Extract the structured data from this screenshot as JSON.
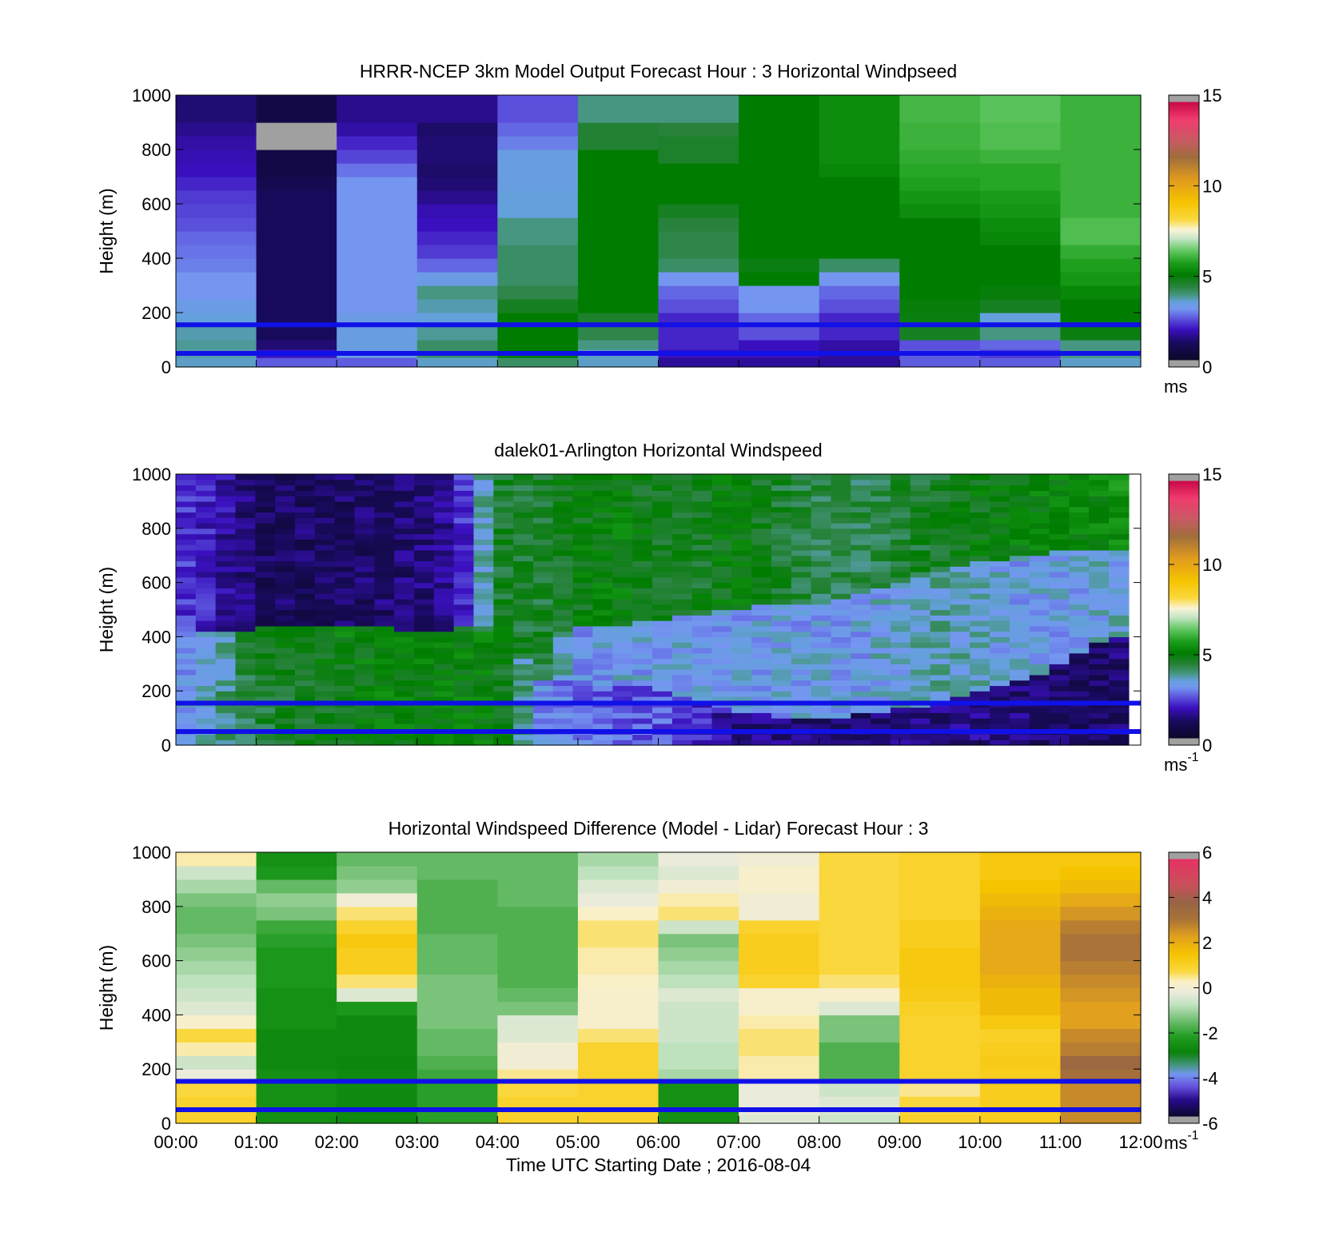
{
  "chart_data": [
    {
      "type": "heatmap",
      "title": "HRRR-NCEP 3km Model Output   Forecast Hour : 3 Horizontal Windpseed",
      "ylabel": "Height (m)",
      "xlabel": "",
      "ylim": [
        0,
        1000
      ],
      "yticks": [
        "0",
        "200",
        "400",
        "600",
        "800",
        "1000"
      ],
      "xlim_hours": [
        0,
        12
      ],
      "colorbar": {
        "min": 0,
        "max": 15,
        "ticks": [
          "0",
          "5",
          "10",
          "15"
        ],
        "unit": "ms",
        "colormap": "wind"
      },
      "value_range": [
        0,
        15
      ],
      "hlines_m": [
        50,
        155
      ],
      "x_hours": [
        0,
        1,
        2,
        3,
        4,
        5,
        6,
        7,
        8,
        9,
        10,
        11
      ],
      "heights_m": [
        35,
        65,
        100,
        150,
        200,
        250,
        300,
        350,
        400,
        450,
        500,
        550,
        600,
        650,
        700,
        750,
        800,
        850,
        900,
        950,
        1000
      ],
      "z": [
        [
          3.5,
          2.5,
          2.5,
          3.5,
          4.0,
          3.5,
          1.5,
          1.5,
          1.5,
          2.5,
          2.5,
          3.5
        ],
        [
          3.6,
          1.8,
          3.3,
          4.0,
          5.0,
          3.5,
          1.8,
          1.8,
          1.5,
          2.5,
          2.2,
          3.8
        ],
        [
          3.7,
          1.2,
          3.3,
          4.0,
          5.0,
          3.8,
          2.0,
          1.8,
          1.6,
          2.4,
          2.6,
          3.8
        ],
        [
          3.6,
          1.0,
          3.3,
          3.7,
          5.0,
          4.2,
          2.0,
          2.4,
          2.0,
          4.6,
          3.8,
          4.8
        ],
        [
          3.4,
          1.0,
          3.2,
          3.4,
          5.0,
          4.5,
          2.0,
          2.6,
          2.0,
          4.8,
          3.4,
          5.0
        ],
        [
          3.2,
          1.0,
          3.0,
          3.6,
          4.6,
          5.0,
          2.4,
          3.0,
          2.4,
          4.9,
          4.6,
          5.0
        ],
        [
          3.0,
          1.0,
          3.0,
          3.8,
          4.2,
          5.0,
          2.6,
          3.0,
          2.6,
          5.0,
          4.9,
          5.2
        ],
        [
          3.0,
          1.0,
          3.0,
          3.2,
          4.0,
          5.0,
          3.0,
          5.0,
          3.0,
          5.0,
          5.0,
          5.5
        ],
        [
          2.8,
          1.0,
          3.0,
          2.6,
          4.0,
          5.0,
          4.0,
          4.8,
          4.0,
          5.0,
          5.0,
          5.7
        ],
        [
          2.7,
          1.0,
          3.0,
          2.2,
          4.0,
          5.0,
          4.2,
          5.0,
          5.0,
          5.0,
          5.0,
          5.9
        ],
        [
          2.6,
          1.0,
          3.0,
          2.0,
          3.8,
          5.0,
          4.2,
          5.0,
          5.0,
          5.0,
          5.2,
          6.2
        ],
        [
          2.4,
          1.0,
          3.0,
          1.8,
          3.8,
          5.0,
          4.3,
          5.0,
          5.0,
          5.0,
          5.3,
          6.2
        ],
        [
          2.3,
          1.0,
          3.0,
          1.7,
          3.4,
          5.0,
          4.6,
          5.0,
          5.0,
          5.3,
          5.5,
          6.0
        ],
        [
          2.2,
          1.0,
          3.0,
          1.4,
          3.4,
          5.0,
          5.0,
          5.0,
          5.0,
          5.5,
          5.6,
          6.0
        ],
        [
          2.0,
          0.8,
          3.0,
          1.2,
          3.3,
          5.0,
          5.0,
          5.0,
          5.0,
          5.7,
          5.8,
          6.0
        ],
        [
          1.8,
          0.6,
          2.7,
          1.1,
          3.3,
          5.0,
          5.0,
          5.0,
          5.2,
          5.8,
          5.8,
          6.0
        ],
        [
          1.7,
          0.6,
          2.3,
          1.2,
          3.3,
          5.0,
          4.5,
          5.0,
          5.3,
          5.9,
          6.0,
          6.0
        ],
        [
          1.6,
          -1,
          2.0,
          1.2,
          2.8,
          4.4,
          4.5,
          5.0,
          5.3,
          6.0,
          6.2,
          6.0
        ],
        [
          1.4,
          -1,
          1.6,
          1.1,
          2.6,
          4.4,
          4.3,
          5.0,
          5.3,
          6.0,
          6.2,
          6.0
        ],
        [
          1.2,
          0.6,
          1.4,
          1.4,
          2.4,
          3.8,
          3.8,
          5.0,
          5.3,
          6.1,
          6.3,
          6.0
        ],
        [
          1.2,
          0.6,
          1.4,
          1.4,
          2.4,
          3.8,
          3.8,
          5.0,
          5.3,
          6.1,
          6.3,
          6.0
        ]
      ]
    },
    {
      "type": "heatmap",
      "title": "dalek01-Arlington  Horizontal Windspeed",
      "ylabel": "Height (m)",
      "xlabel": "",
      "ylim": [
        0,
        1000
      ],
      "yticks": [
        "0",
        "200",
        "400",
        "600",
        "800",
        "1000"
      ],
      "xlim_hours": [
        0,
        12
      ],
      "colorbar": {
        "min": 0,
        "max": 15,
        "ticks": [
          "0",
          "5",
          "10",
          "15"
        ],
        "unit": "ms",
        "unit_sup": "-1",
        "colormap": "wind"
      },
      "value_range": [
        0,
        15
      ],
      "hlines_m": [
        50,
        155
      ],
      "valid_until_hour": 11.85,
      "wind_profile": {
        "x_hours": [
          0,
          0.5,
          1,
          1.5,
          2,
          2.5,
          3,
          3.5,
          4,
          4.5,
          5,
          5.5,
          6,
          6.5,
          7,
          7.5,
          8,
          8.5,
          9,
          9.5,
          10,
          10.5,
          11,
          11.5,
          11.85
        ],
        "low_level_speed": [
          3.0,
          3.8,
          4.4,
          4.6,
          4.8,
          5.0,
          5.0,
          5.0,
          5.0,
          3.0,
          2.7,
          2.5,
          2.5,
          2.0,
          1.4,
          1.2,
          1.1,
          1.1,
          1.2,
          1.3,
          1.4,
          1.2,
          1.0,
          1.0,
          1.2
        ],
        "low_level_top_m": [
          150,
          180,
          260,
          330,
          380,
          400,
          420,
          420,
          420,
          250,
          220,
          220,
          210,
          160,
          130,
          110,
          110,
          110,
          130,
          160,
          200,
          240,
          300,
          380,
          400
        ],
        "mid_level_speed": [
          3.0,
          3.4,
          4.6,
          4.8,
          5.0,
          5.0,
          4.2,
          4.2,
          4.8,
          4.6,
          3.0,
          3.2,
          3.2,
          3.2,
          3.2,
          3.2,
          3.2,
          3.2,
          3.4,
          3.6,
          3.4,
          3.2,
          3.2,
          3.3,
          3.4
        ],
        "mid_level_top_m": [
          450,
          420,
          430,
          440,
          450,
          450,
          420,
          430,
          450,
          400,
          430,
          440,
          460,
          480,
          500,
          520,
          520,
          560,
          600,
          640,
          680,
          700,
          720,
          720,
          720
        ],
        "upper_level_speed": [
          2.2,
          1.8,
          1.0,
          1.0,
          1.0,
          1.1,
          1.2,
          1.6,
          4.6,
          4.4,
          4.8,
          5.0,
          4.6,
          4.6,
          5.0,
          4.5,
          4.2,
          4.2,
          4.4,
          4.6,
          4.8,
          5.0,
          5.0,
          5.2,
          5.4
        ]
      }
    },
    {
      "type": "heatmap",
      "title": "Horizontal Windspeed Difference (Model - Lidar) Forecast Hour : 3",
      "ylabel": "Height (m)",
      "xlabel": "Time UTC  Starting Date ; 2016-08-04",
      "ylim": [
        0,
        1000
      ],
      "yticks": [
        "0",
        "200",
        "400",
        "600",
        "800",
        "1000"
      ],
      "xticks": [
        "00:00",
        "01:00",
        "02:00",
        "03:00",
        "04:00",
        "05:00",
        "06:00",
        "07:00",
        "08:00",
        "09:00",
        "10:00",
        "11:00",
        "12:00"
      ],
      "xlim_hours": [
        0,
        12
      ],
      "colorbar": {
        "min": -6,
        "max": 6,
        "ticks": [
          "-6",
          "-4",
          "-2",
          "0",
          "2",
          "4",
          "6"
        ],
        "unit": "ms",
        "unit_sup": "-1",
        "colormap": "diff"
      },
      "value_range": [
        -6,
        6
      ],
      "hlines_m": [
        50,
        155
      ],
      "x_hours": [
        0,
        1,
        2,
        3,
        4,
        5,
        6,
        7,
        8,
        9,
        10,
        11
      ],
      "heights_m": [
        35,
        100,
        150,
        200,
        250,
        300,
        350,
        400,
        450,
        500,
        550,
        600,
        650,
        700,
        750,
        800,
        850,
        900,
        950,
        1000
      ],
      "z": [
        [
          1.0,
          -2.6,
          -2.8,
          -2.2,
          1.0,
          1.0,
          -2.6,
          -0.4,
          -0.6,
          1.0,
          1.2,
          2.8
        ],
        [
          1.0,
          -2.6,
          -2.8,
          -2.2,
          1.0,
          1.0,
          -2.6,
          -0.2,
          -0.4,
          0.8,
          1.2,
          2.8
        ],
        [
          0.8,
          -2.6,
          -2.8,
          -2.2,
          0.8,
          1.0,
          -2.6,
          -0.2,
          -0.6,
          0.5,
          1.2,
          2.8
        ],
        [
          -0.2,
          -2.6,
          -2.8,
          -2.0,
          0.5,
          1.0,
          -1.0,
          0.4,
          -1.8,
          1.0,
          1.2,
          3.4
        ],
        [
          -0.6,
          -2.8,
          -2.9,
          -1.8,
          0.0,
          1.0,
          -0.8,
          0.4,
          -1.8,
          1.0,
          1.3,
          3.8
        ],
        [
          0.4,
          -2.8,
          -2.8,
          -1.6,
          0.0,
          1.0,
          -0.8,
          0.6,
          -1.8,
          1.0,
          1.2,
          3.0
        ],
        [
          0.8,
          -2.8,
          -2.8,
          -1.6,
          -0.4,
          0.6,
          -0.6,
          0.6,
          -1.4,
          1.0,
          1.1,
          2.8
        ],
        [
          0.2,
          -2.6,
          -2.8,
          -1.4,
          -0.4,
          0.2,
          -0.6,
          0.4,
          -1.4,
          1.0,
          1.4,
          2.4
        ],
        [
          -0.4,
          -2.6,
          -2.4,
          -1.4,
          -1.4,
          0.2,
          -0.6,
          0.2,
          -0.4,
          1.1,
          1.8,
          2.4
        ],
        [
          -0.6,
          -2.6,
          -0.4,
          -1.4,
          -1.6,
          0.2,
          -0.4,
          0.2,
          0.2,
          1.3,
          1.8,
          2.6
        ],
        [
          -0.8,
          -2.4,
          0.6,
          -1.4,
          -1.8,
          0.3,
          -0.8,
          1.0,
          0.6,
          1.4,
          2.0,
          2.8
        ],
        [
          -1.0,
          -2.4,
          1.2,
          -1.6,
          -1.8,
          0.4,
          -1.0,
          1.2,
          0.8,
          1.4,
          2.2,
          3.0
        ],
        [
          -1.2,
          -2.4,
          1.2,
          -1.6,
          -1.8,
          0.4,
          -1.2,
          1.2,
          0.8,
          1.4,
          2.2,
          3.2
        ],
        [
          -1.4,
          -2.2,
          1.4,
          -1.6,
          -1.8,
          0.6,
          -1.4,
          1.2,
          0.8,
          1.2,
          2.2,
          3.2
        ],
        [
          -1.6,
          -2.0,
          1.0,
          -1.8,
          -1.8,
          0.6,
          -0.6,
          1.0,
          0.8,
          1.2,
          2.2,
          3.0
        ],
        [
          -1.6,
          -1.4,
          0.6,
          -1.8,
          -1.8,
          0.3,
          0.6,
          0.0,
          0.8,
          1.0,
          2.0,
          2.6
        ],
        [
          -1.4,
          -1.2,
          0.0,
          -1.8,
          -1.6,
          -0.2,
          0.4,
          0.0,
          0.8,
          1.0,
          1.8,
          2.2
        ],
        [
          -1.0,
          -1.6,
          -1.2,
          -1.8,
          -1.6,
          -0.4,
          0.0,
          0.2,
          0.8,
          1.0,
          1.6,
          1.8
        ],
        [
          -0.6,
          -2.4,
          -1.4,
          -1.6,
          -1.6,
          -0.8,
          -0.4,
          0.2,
          0.8,
          1.0,
          1.4,
          1.6
        ],
        [
          0.4,
          -2.6,
          -1.6,
          -1.6,
          -1.6,
          -1.0,
          -0.2,
          0.0,
          0.8,
          1.0,
          1.4,
          1.4
        ]
      ]
    }
  ]
}
